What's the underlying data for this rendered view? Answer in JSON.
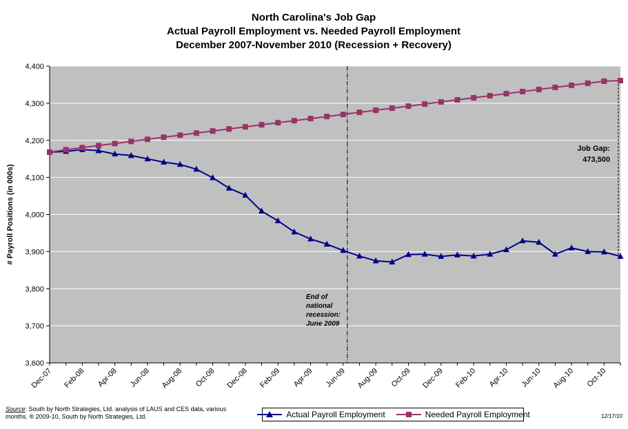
{
  "chart_data": {
    "type": "line",
    "title_lines": [
      "North Carolina's Job Gap",
      "Actual Payroll Employment vs. Needed Payroll Employment",
      "December 2007-November 2010  (Recession + Recovery)"
    ],
    "ylabel": "# Payroll Positions (in 000s)",
    "xlabel": "",
    "ylim": [
      3600,
      4400
    ],
    "y_ticks": [
      "3,600",
      "3,700",
      "3,800",
      "3,900",
      "4,000",
      "4,100",
      "4,200",
      "4,300",
      "4,400"
    ],
    "x_tick_labels": [
      "Dec-07",
      "Feb-08",
      "Apr-08",
      "Jun-08",
      "Aug-08",
      "Oct-08",
      "Dec-08",
      "Feb-09",
      "Apr-09",
      "Jun-09",
      "Aug-09",
      "Oct-09",
      "Dec-09",
      "Feb-10",
      "Apr-10",
      "Jun-10",
      "Aug-10",
      "Oct-10"
    ],
    "months": [
      "Dec-07",
      "Jan-08",
      "Feb-08",
      "Mar-08",
      "Apr-08",
      "May-08",
      "Jun-08",
      "Jul-08",
      "Aug-08",
      "Sep-08",
      "Oct-08",
      "Nov-08",
      "Dec-08",
      "Jan-09",
      "Feb-09",
      "Mar-09",
      "Apr-09",
      "May-09",
      "Jun-09",
      "Jul-09",
      "Aug-09",
      "Sep-09",
      "Oct-09",
      "Nov-09",
      "Dec-09",
      "Jan-10",
      "Feb-10",
      "Mar-10",
      "Apr-10",
      "May-10",
      "Jun-10",
      "Jul-10",
      "Aug-10",
      "Sep-10",
      "Oct-10",
      "Nov-10"
    ],
    "series": [
      {
        "name": "Actual Payroll Employment",
        "color": "#00008B",
        "marker": "triangle",
        "values": [
          4168,
          4170,
          4175,
          4172,
          4163,
          4159,
          4150,
          4141,
          4135,
          4122,
          4099,
          4071,
          4052,
          4009,
          3983,
          3953,
          3934,
          3920,
          3903,
          3888,
          3875,
          3872,
          3892,
          3893,
          3887,
          3891,
          3888,
          3893,
          3905,
          3929,
          3925,
          3893,
          3910,
          3900,
          3899,
          3887
        ]
      },
      {
        "name": "Needed Payroll Employment",
        "color": "#993366",
        "marker": "square",
        "values": [
          4168,
          4174.6,
          4180.2,
          4185.8,
          4191.4,
          4197,
          4202.6,
          4208.2,
          4213.8,
          4219.4,
          4225,
          4230.6,
          4236.2,
          4241.8,
          4247.4,
          4253,
          4258.6,
          4264.2,
          4269.8,
          4275.4,
          4281,
          4286.6,
          4292.2,
          4297.8,
          4303.4,
          4309,
          4314.6,
          4320.2,
          4325.8,
          4331.4,
          4337,
          4342.6,
          4348.2,
          4353.8,
          4359.4,
          4361
        ]
      }
    ],
    "annotations": {
      "recession_end": {
        "lines": [
          "End of",
          "national",
          "recession:",
          "June 2009"
        ],
        "x_month": "Jun-09"
      },
      "job_gap": {
        "lines": [
          "Job Gap:",
          "473,500"
        ],
        "x_month": "Nov-10"
      }
    },
    "grid": true,
    "legend_position": "bottom",
    "plot_background": "#C0C0C0"
  },
  "source": {
    "label": "Source",
    "text": ":  South by North Strategies, Ltd. analysis of LAUS and CES data, various months. ® 2009-10, South by North Strategies, Ltd."
  },
  "date_stamp": "12/17/10"
}
